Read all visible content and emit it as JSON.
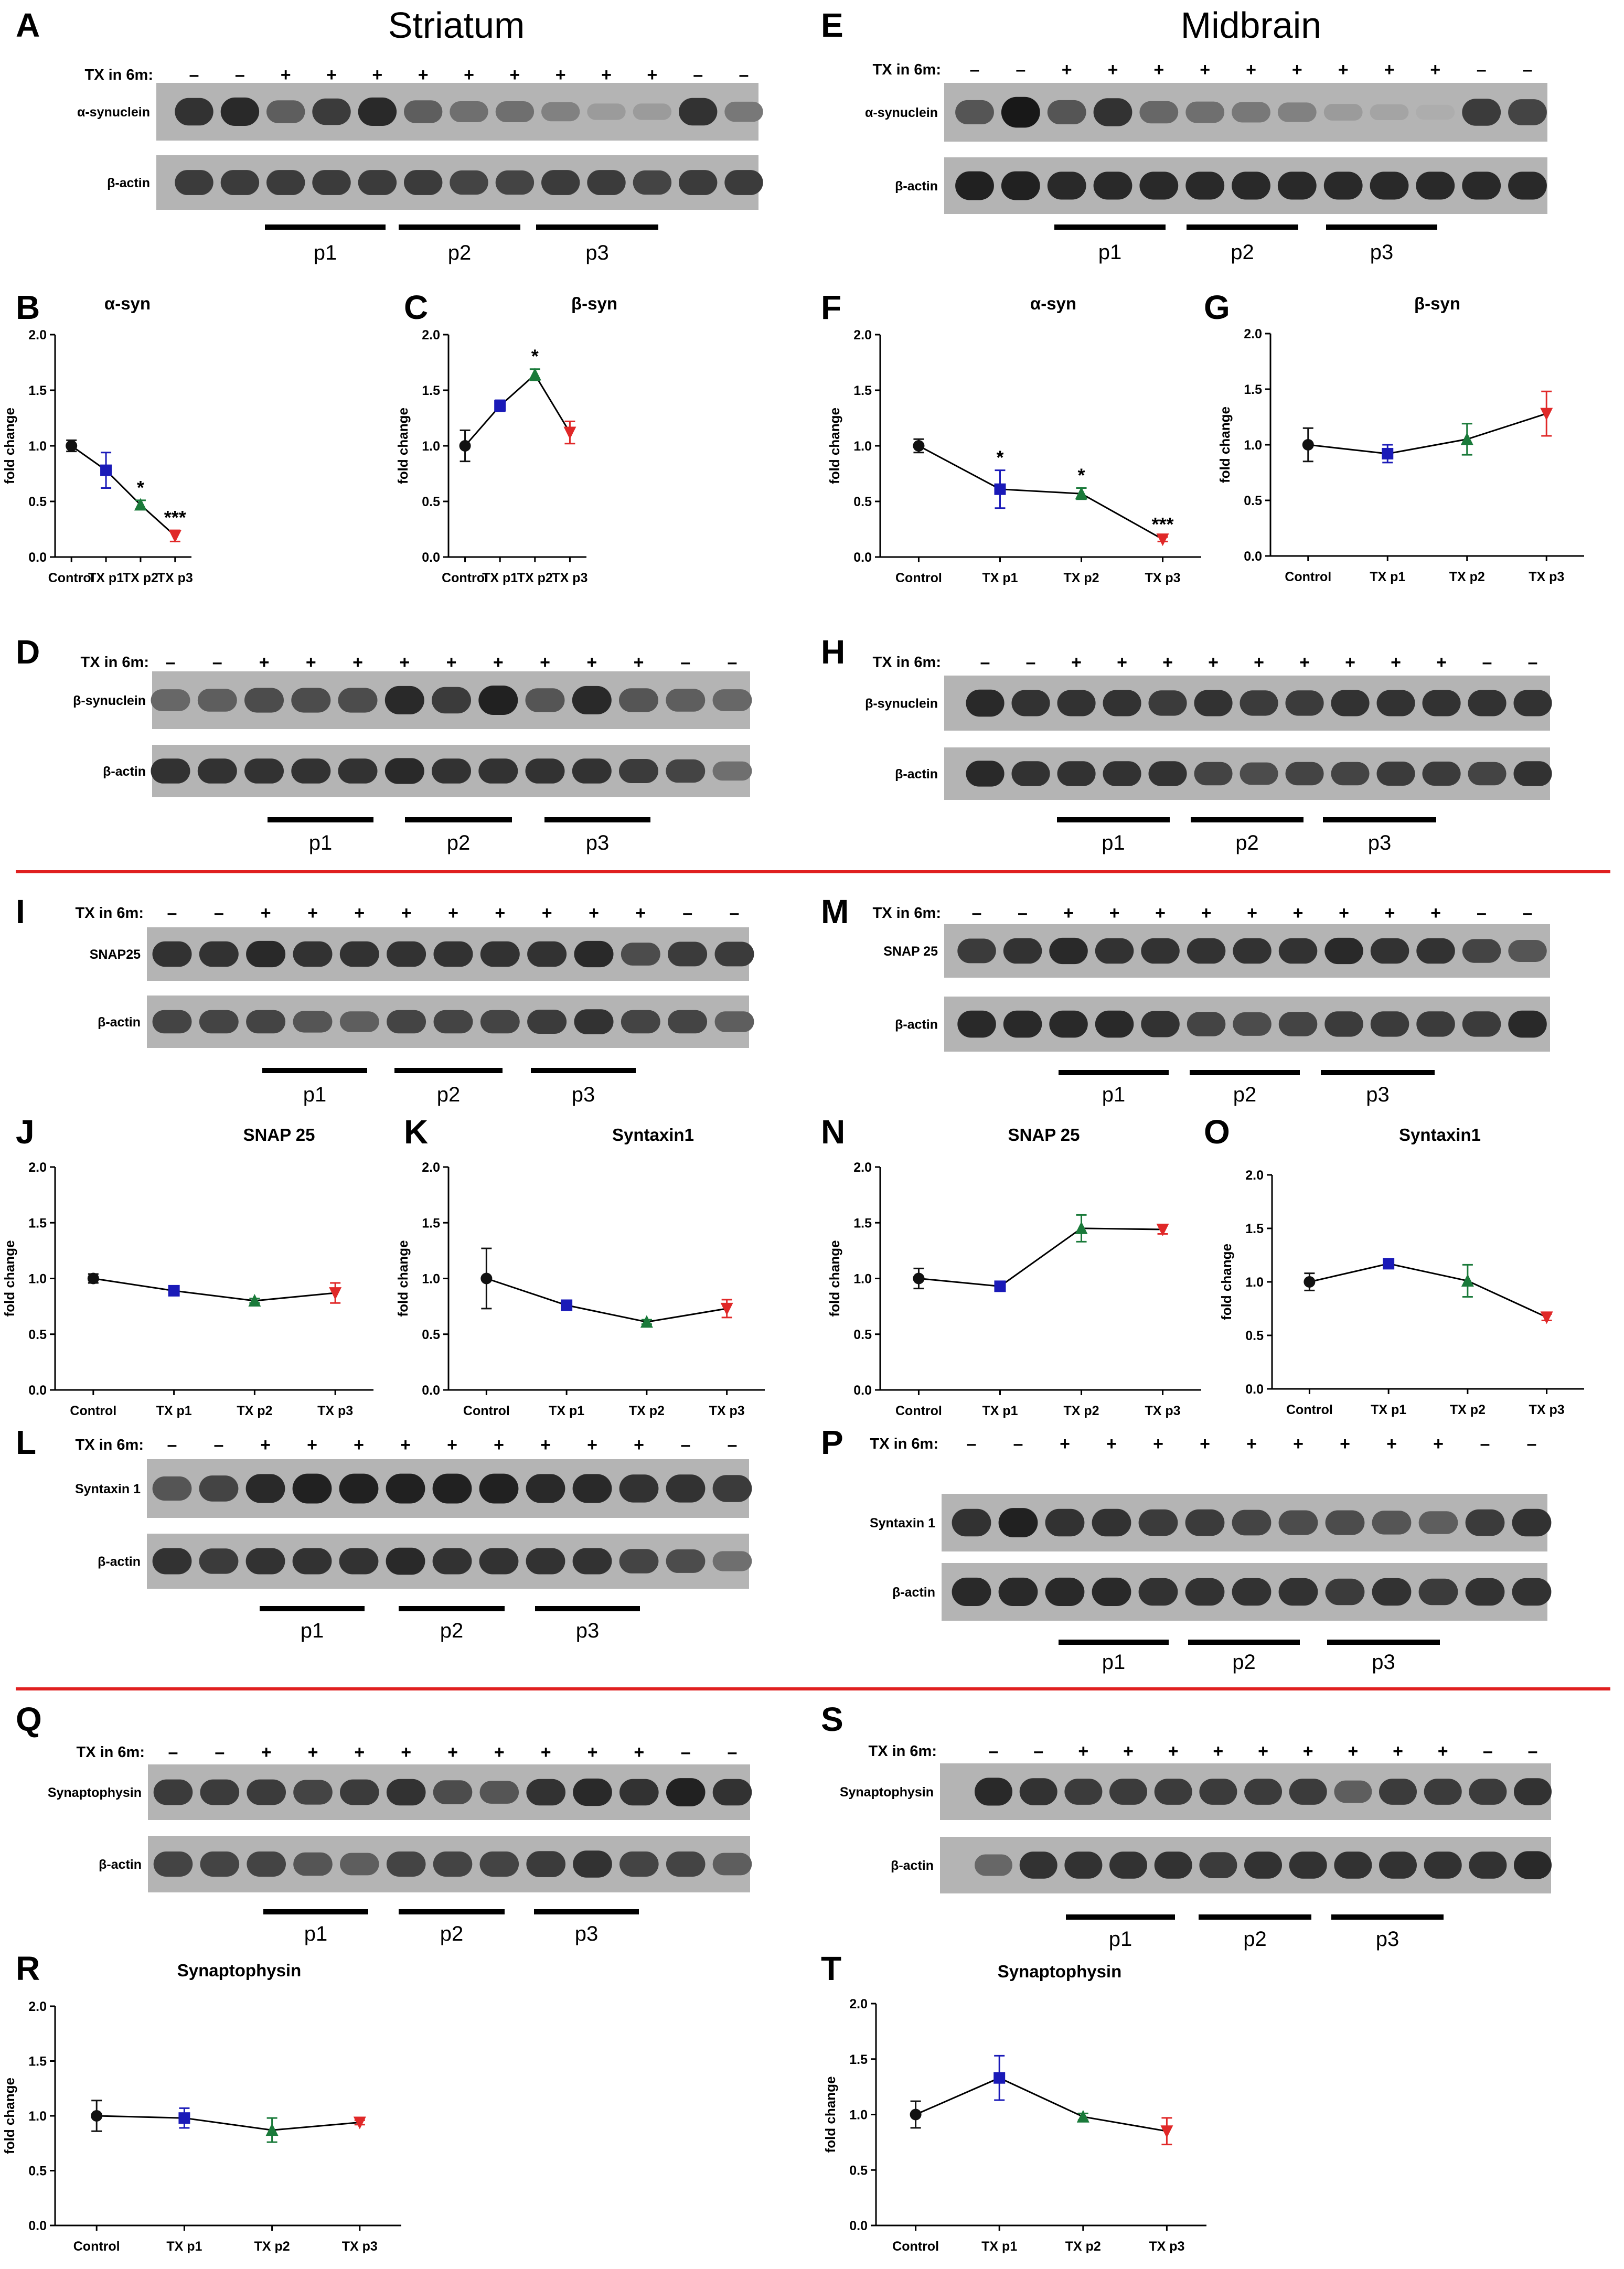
{
  "figure": {
    "regions": [
      "Striatum",
      "Midbrain"
    ],
    "separator_color": "#e02020"
  },
  "panel_letters": [
    "A",
    "B",
    "C",
    "D",
    "E",
    "F",
    "G",
    "H",
    "I",
    "J",
    "K",
    "L",
    "M",
    "N",
    "O",
    "P",
    "Q",
    "R",
    "S",
    "T"
  ],
  "blots": [
    {
      "panel": "A",
      "tx_label": "TX in 6m:",
      "signs": [
        "–",
        "–",
        "+",
        "+",
        "+",
        "+",
        "+",
        "+",
        "+",
        "+",
        "+",
        "–",
        "–"
      ],
      "bands": [
        "α-synuclein",
        "β-actin"
      ],
      "groups": [
        "p1",
        "p2",
        "p3"
      ],
      "intensity": [
        [
          0.8,
          0.85,
          0.55,
          0.75,
          0.85,
          0.55,
          0.45,
          0.45,
          0.35,
          0.2,
          0.2,
          0.8,
          0.4
        ],
        [
          0.75,
          0.75,
          0.75,
          0.75,
          0.75,
          0.75,
          0.7,
          0.7,
          0.75,
          0.75,
          0.7,
          0.75,
          0.75
        ]
      ]
    },
    {
      "panel": "E",
      "tx_label": "TX in 6m:",
      "signs": [
        "–",
        "–",
        "+",
        "+",
        "+",
        "+",
        "+",
        "+",
        "+",
        "+",
        "+",
        "–",
        "–"
      ],
      "bands": [
        "α-synuclein",
        "β-actin"
      ],
      "groups": [
        "p1",
        "p2",
        "p3"
      ],
      "intensity": [
        [
          0.6,
          0.95,
          0.6,
          0.8,
          0.5,
          0.45,
          0.4,
          0.35,
          0.2,
          0.15,
          0.1,
          0.75,
          0.7
        ],
        [
          0.9,
          0.9,
          0.85,
          0.85,
          0.85,
          0.85,
          0.85,
          0.85,
          0.85,
          0.85,
          0.85,
          0.85,
          0.85
        ]
      ]
    },
    {
      "panel": "D",
      "tx_label": "TX in 6m:",
      "signs": [
        "–",
        "–",
        "+",
        "+",
        "+",
        "+",
        "+",
        "+",
        "+",
        "+",
        "+",
        "–",
        "–"
      ],
      "bands": [
        "β-synuclein",
        "β-actin"
      ],
      "groups": [
        "p1",
        "p2",
        "p3"
      ],
      "intensity": [
        [
          0.5,
          0.55,
          0.65,
          0.65,
          0.65,
          0.85,
          0.75,
          0.9,
          0.6,
          0.85,
          0.6,
          0.55,
          0.5
        ],
        [
          0.8,
          0.8,
          0.8,
          0.8,
          0.8,
          0.85,
          0.8,
          0.8,
          0.8,
          0.8,
          0.75,
          0.7,
          0.45
        ]
      ]
    },
    {
      "panel": "H",
      "tx_label": "TX in 6m:",
      "signs": [
        "–",
        "–",
        "+",
        "+",
        "+",
        "+",
        "+",
        "+",
        "+",
        "+",
        "+",
        "–",
        "–"
      ],
      "bands": [
        "β-synuclein",
        "β-actin"
      ],
      "groups": [
        "p1",
        "p2",
        "p3"
      ],
      "intensity": [
        [
          0.85,
          0.8,
          0.8,
          0.8,
          0.75,
          0.8,
          0.75,
          0.75,
          0.8,
          0.8,
          0.8,
          0.8,
          0.8
        ],
        [
          0.85,
          0.8,
          0.8,
          0.8,
          0.8,
          0.7,
          0.65,
          0.7,
          0.7,
          0.75,
          0.75,
          0.7,
          0.8
        ]
      ]
    },
    {
      "panel": "I",
      "tx_label": "TX in 6m:",
      "signs": [
        "–",
        "–",
        "+",
        "+",
        "+",
        "+",
        "+",
        "+",
        "+",
        "+",
        "+",
        "–",
        "–"
      ],
      "bands": [
        "SNAP25",
        "β-actin"
      ],
      "groups": [
        "p1",
        "p2",
        "p3"
      ],
      "intensity": [
        [
          0.8,
          0.8,
          0.85,
          0.8,
          0.8,
          0.8,
          0.8,
          0.8,
          0.8,
          0.85,
          0.65,
          0.75,
          0.75
        ],
        [
          0.7,
          0.7,
          0.7,
          0.6,
          0.55,
          0.7,
          0.7,
          0.7,
          0.75,
          0.8,
          0.7,
          0.7,
          0.55
        ]
      ]
    },
    {
      "panel": "M",
      "tx_label": "TX in 6m:",
      "signs": [
        "–",
        "–",
        "+",
        "+",
        "+",
        "+",
        "+",
        "+",
        "+",
        "+",
        "+",
        "–",
        "–"
      ],
      "bands": [
        "SNAP 25",
        "β-actin"
      ],
      "groups": [
        "p1",
        "p2",
        "p3"
      ],
      "intensity": [
        [
          0.75,
          0.8,
          0.85,
          0.8,
          0.8,
          0.8,
          0.8,
          0.8,
          0.85,
          0.8,
          0.8,
          0.7,
          0.6
        ],
        [
          0.85,
          0.85,
          0.85,
          0.85,
          0.8,
          0.7,
          0.65,
          0.7,
          0.75,
          0.75,
          0.75,
          0.75,
          0.85
        ]
      ]
    },
    {
      "panel": "L",
      "tx_label": "TX in 6m:",
      "signs": [
        "–",
        "–",
        "+",
        "+",
        "+",
        "+",
        "+",
        "+",
        "+",
        "+",
        "+",
        "–",
        "–"
      ],
      "bands": [
        "Syntaxin 1",
        "β-actin"
      ],
      "groups": [
        "p1",
        "p2",
        "p3"
      ],
      "intensity": [
        [
          0.6,
          0.7,
          0.85,
          0.9,
          0.9,
          0.9,
          0.9,
          0.9,
          0.85,
          0.85,
          0.8,
          0.8,
          0.75
        ],
        [
          0.8,
          0.75,
          0.8,
          0.8,
          0.8,
          0.85,
          0.8,
          0.8,
          0.8,
          0.8,
          0.7,
          0.65,
          0.45
        ]
      ]
    },
    {
      "panel": "P",
      "tx_label": "TX in 6m:",
      "signs": [
        "–",
        "–",
        "+",
        "+",
        "+",
        "+",
        "+",
        "+",
        "+",
        "+",
        "+",
        "–",
        "–"
      ],
      "bands": [
        "Syntaxin 1",
        "β-actin"
      ],
      "groups": [
        "p1",
        "p2",
        "p3"
      ],
      "intensity": [
        [
          0.8,
          0.9,
          0.8,
          0.8,
          0.75,
          0.75,
          0.7,
          0.65,
          0.65,
          0.6,
          0.55,
          0.75,
          0.8
        ],
        [
          0.85,
          0.85,
          0.85,
          0.85,
          0.8,
          0.8,
          0.8,
          0.8,
          0.75,
          0.8,
          0.75,
          0.8,
          0.8
        ]
      ]
    },
    {
      "panel": "Q",
      "tx_label": "TX in 6m:",
      "signs": [
        "–",
        "–",
        "+",
        "+",
        "+",
        "+",
        "+",
        "+",
        "+",
        "+",
        "+",
        "–",
        "–"
      ],
      "bands": [
        "Synaptophysin",
        "β-actin"
      ],
      "groups": [
        "p1",
        "p2",
        "p3"
      ],
      "intensity": [
        [
          0.75,
          0.75,
          0.75,
          0.7,
          0.75,
          0.8,
          0.65,
          0.6,
          0.8,
          0.85,
          0.8,
          0.9,
          0.8
        ],
        [
          0.7,
          0.7,
          0.7,
          0.6,
          0.55,
          0.7,
          0.7,
          0.7,
          0.75,
          0.8,
          0.7,
          0.7,
          0.55
        ]
      ]
    },
    {
      "panel": "S",
      "tx_label": "TX in 6m:",
      "signs": [
        "–",
        "–",
        "+",
        "+",
        "+",
        "+",
        "+",
        "+",
        "+",
        "+",
        "+",
        "–",
        "–"
      ],
      "bands": [
        "Synaptophysin",
        "β-actin"
      ],
      "groups": [
        "p1",
        "p2",
        "p3"
      ],
      "intensity": [
        [
          0.85,
          0.8,
          0.75,
          0.75,
          0.75,
          0.75,
          0.75,
          0.75,
          0.55,
          0.75,
          0.75,
          0.75,
          0.8
        ],
        [
          0.5,
          0.8,
          0.8,
          0.8,
          0.8,
          0.75,
          0.8,
          0.8,
          0.8,
          0.8,
          0.8,
          0.8,
          0.85
        ]
      ]
    }
  ],
  "chart_data": [
    {
      "panel": "B",
      "type": "line",
      "title": "α-syn",
      "xlabel": "",
      "ylabel": "fold change",
      "categories": [
        "Control",
        "TX p1",
        "TX p2",
        "TX p3"
      ],
      "values": [
        1.0,
        0.78,
        0.47,
        0.19
      ],
      "errors": [
        0.05,
        0.16,
        0.04,
        0.05
      ],
      "significance": [
        "",
        "",
        "*",
        "***"
      ],
      "ylim": [
        0.0,
        2.0
      ],
      "yticks": [
        "0.0",
        "0.5",
        "1.0",
        "1.5",
        "2.0"
      ]
    },
    {
      "panel": "C",
      "type": "line",
      "title": "β-syn",
      "xlabel": "",
      "ylabel": "fold change",
      "categories": [
        "Control",
        "TX p1",
        "TX p2",
        "TX p3"
      ],
      "values": [
        1.0,
        1.36,
        1.64,
        1.12
      ],
      "errors": [
        0.14,
        0.05,
        0.05,
        0.1
      ],
      "significance": [
        "",
        "",
        "*",
        ""
      ],
      "ylim": [
        0.0,
        2.0
      ],
      "yticks": [
        "0.0",
        "0.5",
        "1.0",
        "1.5",
        "2.0"
      ]
    },
    {
      "panel": "F",
      "type": "line",
      "title": "α-syn",
      "xlabel": "",
      "ylabel": "fold change",
      "categories": [
        "Control",
        "TX p1",
        "TX p2",
        "TX p3"
      ],
      "values": [
        1.0,
        0.61,
        0.57,
        0.16
      ],
      "errors": [
        0.06,
        0.17,
        0.05,
        0.02
      ],
      "significance": [
        "",
        "*",
        "*",
        "***"
      ],
      "ylim": [
        0.0,
        2.0
      ],
      "yticks": [
        "0.0",
        "0.5",
        "1.0",
        "1.5",
        "2.0"
      ]
    },
    {
      "panel": "G",
      "type": "line",
      "title": "β-syn",
      "xlabel": "",
      "ylabel": "fold change",
      "categories": [
        "Control",
        "TX p1",
        "TX p2",
        "TX p3"
      ],
      "values": [
        1.0,
        0.92,
        1.05,
        1.28
      ],
      "errors": [
        0.15,
        0.08,
        0.14,
        0.2
      ],
      "significance": [
        "",
        "",
        "",
        ""
      ],
      "ylim": [
        0.0,
        2.0
      ],
      "yticks": [
        "0.0",
        "0.5",
        "1.0",
        "1.5",
        "2.0"
      ]
    },
    {
      "panel": "J",
      "type": "line",
      "title": "SNAP 25",
      "xlabel": "",
      "ylabel": "fold change",
      "categories": [
        "Control",
        "TX p1",
        "TX p2",
        "TX p3"
      ],
      "values": [
        1.0,
        0.89,
        0.8,
        0.87
      ],
      "errors": [
        0.04,
        0.02,
        0.02,
        0.09
      ],
      "significance": [
        "",
        "",
        "",
        ""
      ],
      "ylim": [
        0.0,
        2.0
      ],
      "yticks": [
        "0.0",
        "0.5",
        "1.0",
        "1.5",
        "2.0"
      ]
    },
    {
      "panel": "K",
      "type": "line",
      "title": "Syntaxin1",
      "xlabel": "",
      "ylabel": "fold change",
      "categories": [
        "Control",
        "TX p1",
        "TX p2",
        "TX p3"
      ],
      "values": [
        1.0,
        0.76,
        0.61,
        0.73
      ],
      "errors": [
        0.27,
        0.02,
        0.02,
        0.08
      ],
      "significance": [
        "",
        "",
        "",
        ""
      ],
      "ylim": [
        0.0,
        2.0
      ],
      "yticks": [
        "0.0",
        "0.5",
        "1.0",
        "1.5",
        "2.0"
      ]
    },
    {
      "panel": "N",
      "type": "line",
      "title": "SNAP 25",
      "xlabel": "",
      "ylabel": "fold change",
      "categories": [
        "Control",
        "TX p1",
        "TX p2",
        "TX p3"
      ],
      "values": [
        1.0,
        0.93,
        1.45,
        1.44
      ],
      "errors": [
        0.09,
        0.02,
        0.12,
        0.04
      ],
      "significance": [
        "",
        "",
        "",
        ""
      ],
      "ylim": [
        0.0,
        2.0
      ],
      "yticks": [
        "0.0",
        "0.5",
        "1.0",
        "1.5",
        "2.0"
      ]
    },
    {
      "panel": "O",
      "type": "line",
      "title": "Syntaxin1",
      "xlabel": "",
      "ylabel": "fold change",
      "categories": [
        "Control",
        "TX p1",
        "TX p2",
        "TX p3"
      ],
      "values": [
        1.0,
        1.17,
        1.01,
        0.67
      ],
      "errors": [
        0.08,
        0.02,
        0.15,
        0.03
      ],
      "significance": [
        "",
        "",
        "",
        ""
      ],
      "ylim": [
        0.0,
        2.0
      ],
      "yticks": [
        "0.0",
        "0.5",
        "1.0",
        "1.5",
        "2.0"
      ]
    },
    {
      "panel": "R",
      "type": "line",
      "title": "Synaptophysin",
      "xlabel": "",
      "ylabel": "fold change",
      "categories": [
        "Control",
        "TX p1",
        "TX p2",
        "TX p3"
      ],
      "values": [
        1.0,
        0.98,
        0.87,
        0.94
      ],
      "errors": [
        0.14,
        0.09,
        0.11,
        0.02
      ],
      "significance": [
        "",
        "",
        "",
        ""
      ],
      "ylim": [
        0.0,
        2.0
      ],
      "yticks": [
        "0.0",
        "0.5",
        "1.0",
        "1.5",
        "2.0"
      ]
    },
    {
      "panel": "T",
      "type": "line",
      "title": "Synaptophysin",
      "xlabel": "",
      "ylabel": "fold change",
      "categories": [
        "Control",
        "TX p1",
        "TX p2",
        "TX p3"
      ],
      "values": [
        1.0,
        1.33,
        0.98,
        0.85
      ],
      "errors": [
        0.12,
        0.2,
        0.03,
        0.12
      ],
      "significance": [
        "",
        "",
        "",
        ""
      ],
      "ylim": [
        0.0,
        2.0
      ],
      "yticks": [
        "0.0",
        "0.5",
        "1.0",
        "1.5",
        "2.0"
      ]
    }
  ],
  "series_colors": [
    "#111111",
    "#1a1ab8",
    "#1a7a3a",
    "#e02828"
  ],
  "marker_shapes": [
    "circle",
    "square",
    "triangle-up",
    "triangle-down"
  ]
}
